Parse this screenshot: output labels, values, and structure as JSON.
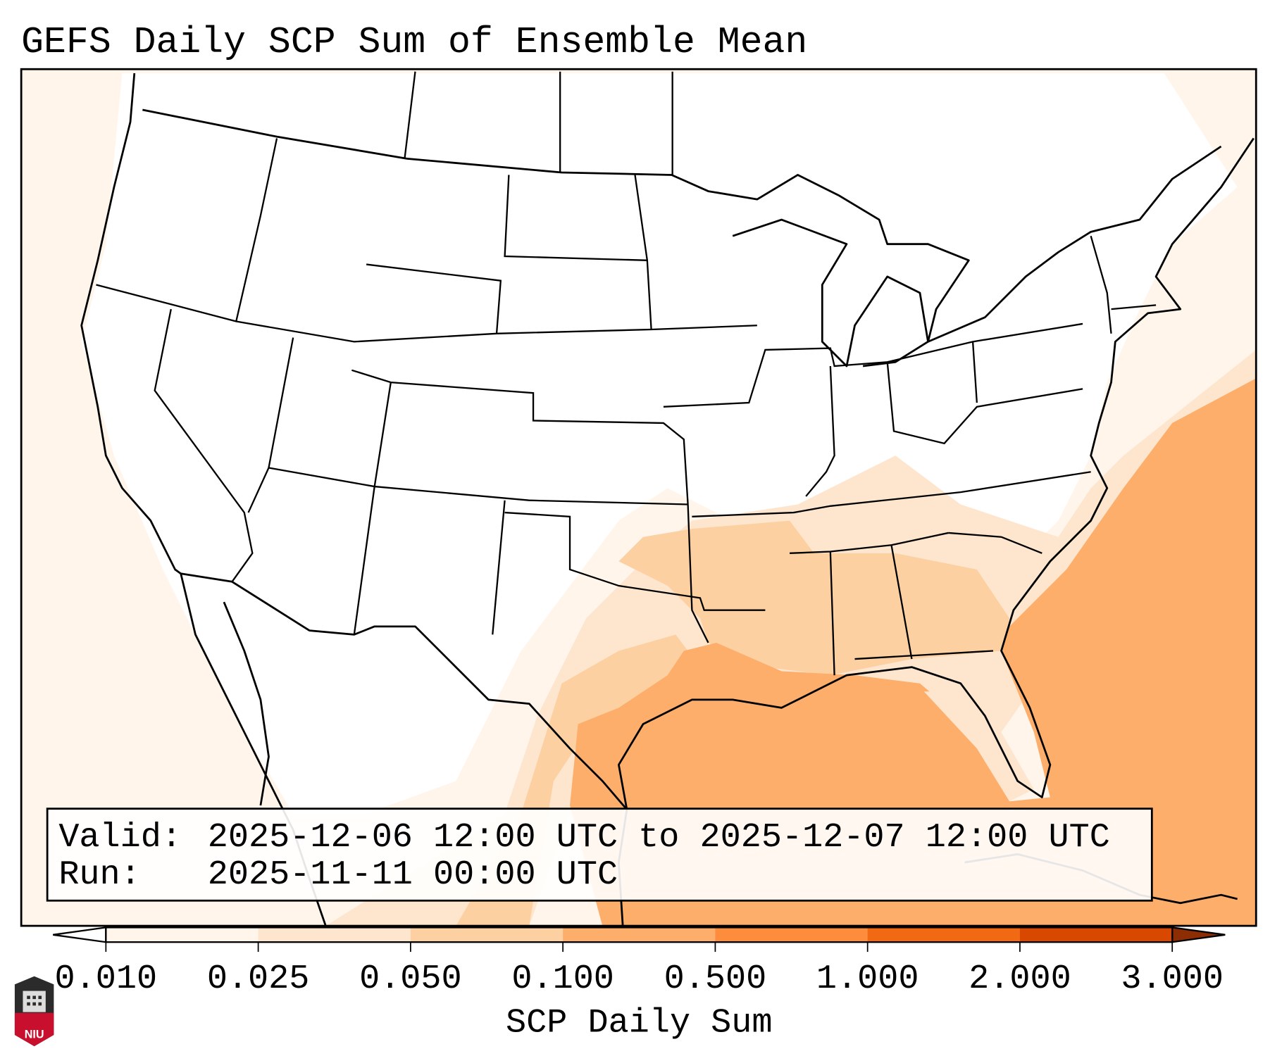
{
  "chart_data": {
    "type": "heatmap",
    "title": "GEFS Daily SCP Sum of Ensemble Mean",
    "colorbar": {
      "label": "SCP Daily Sum",
      "ticks": [
        "0.010",
        "0.025",
        "0.050",
        "0.100",
        "0.500",
        "1.000",
        "2.000",
        "3.000"
      ],
      "levels": [
        0.01,
        0.025,
        0.05,
        0.1,
        0.5,
        1.0,
        2.0,
        3.0
      ],
      "colors": [
        "#fff5eb",
        "#fee6ce",
        "#fdd0a2",
        "#fdae6b",
        "#fd8d3c",
        "#f16913",
        "#d94801"
      ],
      "extend_max_color": "#8c2d04",
      "extend_min_color": "#ffffff"
    },
    "region": "Contiguous United States",
    "max_values_region": "Gulf of Mexico and western Atlantic (0.100-0.500)"
  },
  "info_box": {
    "valid_label": "Valid:",
    "valid_text": "2025-12-06 12:00 UTC to 2025-12-07 12:00 UTC",
    "run_label": "Run:",
    "run_text": "2025-11-11 00:00 UTC"
  },
  "logo": {
    "text": "NIU"
  }
}
